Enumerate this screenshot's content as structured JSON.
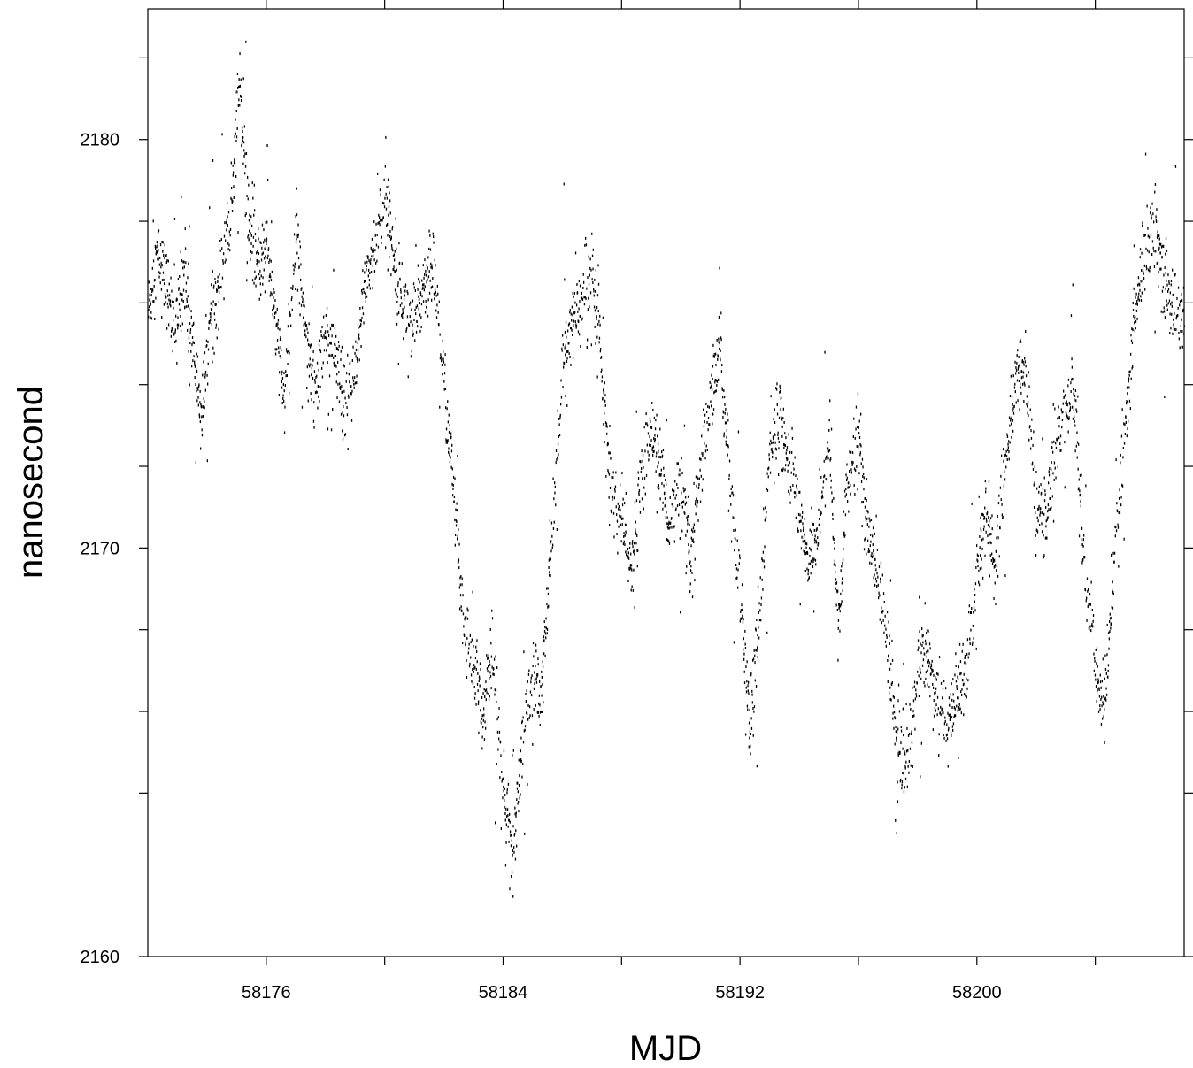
{
  "chart_data": {
    "type": "scatter",
    "title": "",
    "xlabel": "MJD",
    "ylabel": "nanosecond",
    "xlim": [
      58172,
      58207
    ],
    "ylim": [
      2160,
      2183.2
    ],
    "x_ticks": [
      58176,
      58184,
      58192,
      58200
    ],
    "x_tick_labels": [
      "58176",
      "58184",
      "58192",
      "58200"
    ],
    "x_minor_ticks": [
      58180,
      58188,
      58196,
      58204
    ],
    "y_ticks": [
      2160,
      2170,
      2180
    ],
    "y_tick_labels": [
      "2160",
      "2170",
      "2180"
    ],
    "y_minor_ticks": [
      2164,
      2166,
      2168,
      2172,
      2174,
      2176,
      2178,
      2182
    ],
    "grid": false,
    "marker_color": "#000000",
    "series": [
      {
        "x": [
          58172.0,
          58172.3,
          58172.6,
          58172.9,
          58173.2,
          58173.5,
          58173.8,
          58174.1,
          58174.4,
          58174.8,
          58175.1,
          58175.4,
          58175.7,
          58176.0,
          58176.3,
          58176.6,
          58177.0,
          58177.3,
          58177.6,
          58178.0,
          58178.3,
          58178.6,
          58179.0,
          58179.3,
          58179.6,
          58180.0,
          58180.3,
          58180.6,
          58181.0,
          58181.3,
          58181.6,
          58182.0,
          58182.3,
          58182.6,
          58183.0,
          58183.3,
          58183.6,
          58184.0,
          58184.3,
          58184.6,
          58185.0,
          58185.3,
          58185.6,
          58186.0,
          58186.3,
          58186.6,
          58187.0,
          58187.3,
          58187.6,
          58188.0,
          58188.3,
          58188.6,
          58189.0,
          58189.3,
          58189.6,
          58190.0,
          58190.3,
          58190.6,
          58191.0,
          58191.3,
          58191.6,
          58192.0,
          58192.3,
          58192.6,
          58193.0,
          58193.3,
          58193.6,
          58194.0,
          58194.3,
          58194.6,
          58195.0,
          58195.3,
          58195.6,
          58196.0,
          58196.3,
          58196.6,
          58197.0,
          58197.3,
          58197.6,
          58198.0,
          58198.3,
          58198.6,
          58199.0,
          58199.3,
          58199.6,
          58200.0,
          58200.3,
          58200.6,
          58201.0,
          58201.3,
          58201.6,
          58202.0,
          58202.3,
          58202.6,
          58203.0,
          58203.3,
          58203.6,
          58204.0,
          58204.3,
          58204.6,
          58205.0,
          58205.3,
          58205.6,
          58206.0,
          58206.3,
          58206.6,
          58207.0
        ],
        "y": [
          2175.8,
          2177.2,
          2176.5,
          2175.3,
          2176.8,
          2175.0,
          2173.2,
          2175.5,
          2176.5,
          2178.3,
          2181.5,
          2177.8,
          2176.8,
          2177.5,
          2175.5,
          2173.5,
          2177.8,
          2175.5,
          2173.8,
          2175.2,
          2174.8,
          2173.5,
          2174.2,
          2176.5,
          2177.2,
          2178.5,
          2177.2,
          2176.0,
          2175.5,
          2176.5,
          2177.0,
          2174.0,
          2171.5,
          2168.5,
          2167.0,
          2166.0,
          2167.5,
          2164.0,
          2162.5,
          2165.0,
          2167.0,
          2166.5,
          2170.0,
          2174.5,
          2175.5,
          2176.0,
          2177.0,
          2174.5,
          2171.5,
          2170.5,
          2169.5,
          2171.5,
          2173.0,
          2172.0,
          2170.5,
          2171.5,
          2169.5,
          2171.5,
          2173.5,
          2175.0,
          2172.0,
          2169.0,
          2165.5,
          2168.0,
          2172.5,
          2173.5,
          2172.0,
          2171.0,
          2169.5,
          2170.5,
          2172.5,
          2168.0,
          2171.5,
          2172.5,
          2170.5,
          2169.5,
          2167.5,
          2165.0,
          2164.5,
          2167.0,
          2167.5,
          2166.5,
          2165.5,
          2166.5,
          2167.0,
          2169.5,
          2171.0,
          2169.5,
          2172.5,
          2174.0,
          2174.5,
          2171.0,
          2170.5,
          2172.5,
          2173.5,
          2173.5,
          2169.5,
          2167.0,
          2166.0,
          2169.5,
          2173.0,
          2175.5,
          2177.0,
          2178.0,
          2176.5,
          2176.0,
          2175.5
        ]
      }
    ]
  }
}
